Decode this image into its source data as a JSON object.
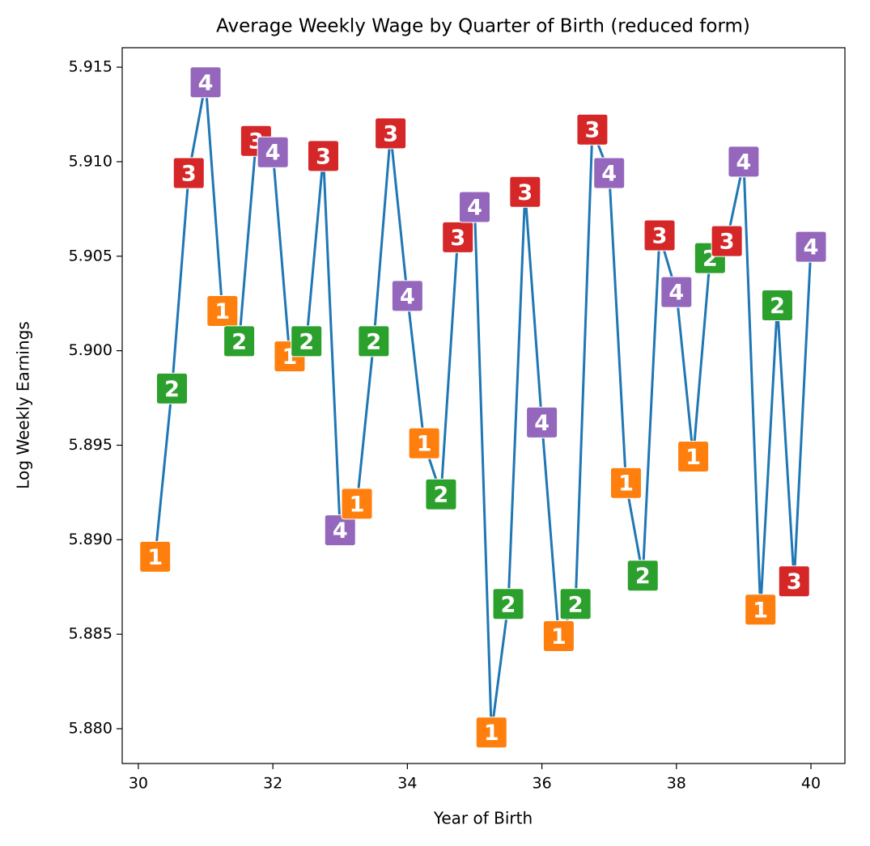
{
  "chart_data": {
    "type": "line",
    "title": "Average Weekly Wage by Quarter of Birth (reduced form)",
    "xlabel": "Year of Birth",
    "ylabel": "Log Weekly Earnings",
    "x": [
      30.25,
      30.5,
      30.75,
      31.0,
      31.25,
      31.5,
      31.75,
      32.0,
      32.25,
      32.5,
      32.75,
      33.0,
      33.25,
      33.5,
      33.75,
      34.0,
      34.25,
      34.5,
      34.75,
      35.0,
      35.25,
      35.5,
      35.75,
      36.0,
      36.25,
      36.5,
      36.75,
      37.0,
      37.25,
      37.5,
      37.75,
      38.0,
      38.25,
      38.5,
      38.75,
      39.0,
      39.25,
      39.5,
      39.75,
      40.0
    ],
    "values": [
      5.8891,
      5.898,
      5.9094,
      5.9142,
      5.9021,
      5.9005,
      5.9111,
      5.9105,
      5.8997,
      5.9005,
      5.9103,
      5.8905,
      5.8919,
      5.9005,
      5.9115,
      5.9029,
      5.8951,
      5.8924,
      5.906,
      5.9076,
      5.8798,
      5.8866,
      5.9084,
      5.8962,
      5.8849,
      5.8866,
      5.9117,
      5.9094,
      5.893,
      5.8881,
      5.9061,
      5.9031,
      5.8944,
      5.9049,
      5.9058,
      5.91,
      5.8863,
      5.9024,
      5.8878,
      5.9055
    ],
    "point_labels": [
      "1",
      "2",
      "3",
      "4",
      "1",
      "2",
      "3",
      "4",
      "1",
      "2",
      "3",
      "4",
      "1",
      "2",
      "3",
      "4",
      "1",
      "2",
      "3",
      "4",
      "1",
      "2",
      "3",
      "4",
      "1",
      "2",
      "3",
      "4",
      "1",
      "2",
      "3",
      "4",
      "1",
      "2",
      "3",
      "4",
      "1",
      "2",
      "3",
      "4"
    ],
    "label_colors": {
      "1": "#ff7f0e",
      "2": "#2ca02c",
      "3": "#d62728",
      "4": "#9467bd"
    },
    "color": "#1f77b4",
    "xlim": [
      29.76,
      40.505
    ],
    "ylim": [
      5.87816,
      5.91603
    ],
    "xticks": [
      30,
      32,
      34,
      36,
      38,
      40
    ],
    "yticks": [
      {
        "value": 5.88,
        "label": "5.880"
      },
      5.885,
      {
        "value": 5.89,
        "label": "5.890"
      },
      5.895,
      {
        "value": 5.9,
        "label": "5.900"
      },
      5.905,
      {
        "value": 5.91,
        "label": "5.910"
      },
      5.915
    ],
    "grid": false
  }
}
